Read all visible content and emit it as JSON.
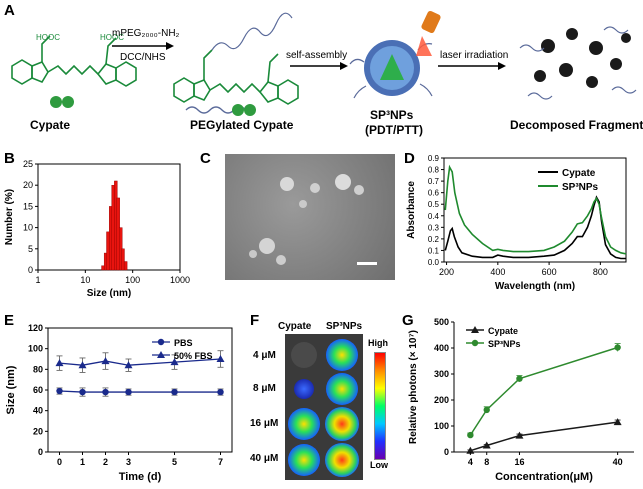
{
  "panel_A": {
    "label": "A",
    "cypate": "Cypate",
    "step1_reagent": "mPEG₂₀₀₀-NH₂",
    "step1_catalyst": "DCC/NHS",
    "pegylated": "PEGylated Cypate",
    "step2": "self-assembly",
    "nps_name": "SP³NPs",
    "nps_mode": "(PDT/PTT)",
    "step3": "laser irradiation",
    "fragments": "Decomposed Fragments",
    "cooh": "HOOC",
    "colors": {
      "molecule": "#1a8a3a",
      "bead": "#2f9b3f",
      "peg": "#5a6a9a",
      "laser": "#ff5a3c"
    }
  },
  "panel_B_label": "B",
  "panel_C_label": "C",
  "panel_D_label": "D",
  "panel_E_label": "E",
  "panel_F": {
    "label": "F",
    "col_headers": [
      "Cypate",
      "SP³NPs"
    ],
    "rows": [
      "4 μM",
      "8 μM",
      "16 μM",
      "40 μM"
    ],
    "scale_high": "High",
    "scale_low": "Low"
  },
  "panel_G_label": "G",
  "chart_data": [
    {
      "panel": "B",
      "type": "bar",
      "xlabel": "Size (nm)",
      "ylabel": "Number (%)",
      "xscale": "log",
      "xlim": [
        1,
        1000
      ],
      "ylim": [
        0,
        25
      ],
      "xticks": [
        "1",
        "10",
        "100",
        "1000"
      ],
      "yticks": [
        "0",
        "5",
        "10",
        "15",
        "20",
        "25"
      ],
      "bins": [
        22,
        25,
        28,
        32,
        36,
        41,
        46,
        52,
        58,
        66
      ],
      "values": [
        1,
        4,
        9,
        15,
        20,
        21,
        17,
        10,
        5,
        2
      ],
      "color": "#e8140f"
    },
    {
      "panel": "D",
      "type": "line",
      "xlabel": "Wavelength (nm)",
      "ylabel": "Absorbance",
      "xlim": [
        190,
        900
      ],
      "ylim": [
        0.0,
        0.9
      ],
      "xticks": [
        "200",
        "400",
        "600",
        "800"
      ],
      "yticks": [
        "0.0",
        "0.1",
        "0.2",
        "0.3",
        "0.4",
        "0.5",
        "0.6",
        "0.7",
        "0.8",
        "0.9"
      ],
      "series": [
        {
          "name": "Cypate",
          "color": "#000000",
          "x": [
            195,
            205,
            215,
            222,
            230,
            245,
            260,
            300,
            340,
            380,
            400,
            420,
            460,
            520,
            580,
            620,
            660,
            690,
            710,
            730,
            750,
            765,
            775,
            785,
            795,
            805,
            820,
            840,
            860,
            880,
            900
          ],
          "y": [
            0.1,
            0.18,
            0.27,
            0.29,
            0.22,
            0.13,
            0.08,
            0.05,
            0.04,
            0.04,
            0.06,
            0.05,
            0.04,
            0.04,
            0.05,
            0.06,
            0.1,
            0.16,
            0.22,
            0.22,
            0.3,
            0.4,
            0.49,
            0.56,
            0.52,
            0.35,
            0.15,
            0.07,
            0.04,
            0.03,
            0.03
          ]
        },
        {
          "name": "SP³NPs",
          "color": "#1f8a2e",
          "x": [
            195,
            205,
            212,
            222,
            232,
            250,
            270,
            300,
            340,
            380,
            400,
            420,
            460,
            520,
            580,
            620,
            660,
            690,
            710,
            730,
            750,
            765,
            775,
            785,
            795,
            805,
            820,
            840,
            860,
            880,
            900
          ],
          "y": [
            0.45,
            0.7,
            0.82,
            0.78,
            0.6,
            0.42,
            0.32,
            0.24,
            0.16,
            0.1,
            0.11,
            0.1,
            0.09,
            0.09,
            0.1,
            0.13,
            0.18,
            0.26,
            0.33,
            0.34,
            0.4,
            0.46,
            0.52,
            0.55,
            0.5,
            0.38,
            0.22,
            0.13,
            0.1,
            0.08,
            0.07
          ]
        }
      ]
    },
    {
      "panel": "E",
      "type": "line",
      "xlabel": "Time (d)",
      "ylabel": "Size (nm)",
      "xlim": [
        -0.5,
        7.5
      ],
      "ylim": [
        0,
        120
      ],
      "xticks": [
        "0",
        "1",
        "2",
        "3",
        "5",
        "7"
      ],
      "yticks": [
        "0",
        "20",
        "40",
        "60",
        "80",
        "100",
        "120"
      ],
      "series": [
        {
          "name": "PBS",
          "color": "#1a2a8c",
          "marker": "circle",
          "x": [
            0,
            1,
            2,
            3,
            5,
            7
          ],
          "y": [
            59,
            58,
            58,
            58,
            58,
            58
          ],
          "err": [
            3,
            4,
            4,
            3,
            3,
            3
          ]
        },
        {
          "name": "50% FBS",
          "color": "#1a2a8c",
          "marker": "triangle",
          "x": [
            0,
            1,
            2,
            3,
            5,
            7
          ],
          "y": [
            86,
            84,
            88,
            84,
            87,
            90
          ],
          "err": [
            7,
            7,
            8,
            6,
            7,
            8
          ]
        }
      ]
    },
    {
      "panel": "G",
      "type": "line",
      "xlabel": "Concentration(μM)",
      "ylabel": "Relative photons (× 10⁷)",
      "xlim": [
        0,
        44
      ],
      "ylim": [
        0,
        500
      ],
      "xticks": [
        "4",
        "8",
        "16",
        "40"
      ],
      "yticks": [
        "0",
        "100",
        "200",
        "300",
        "400",
        "500"
      ],
      "series": [
        {
          "name": "Cypate",
          "color": "#1a1a1a",
          "marker": "triangle",
          "x": [
            4,
            8,
            16,
            40
          ],
          "y": [
            5,
            25,
            63,
            115
          ],
          "err": [
            3,
            4,
            6,
            8
          ]
        },
        {
          "name": "SP³NPs",
          "color": "#2e8a2e",
          "marker": "circle",
          "x": [
            4,
            8,
            16,
            40
          ],
          "y": [
            65,
            162,
            282,
            402
          ],
          "err": [
            8,
            12,
            12,
            15
          ]
        }
      ]
    }
  ]
}
